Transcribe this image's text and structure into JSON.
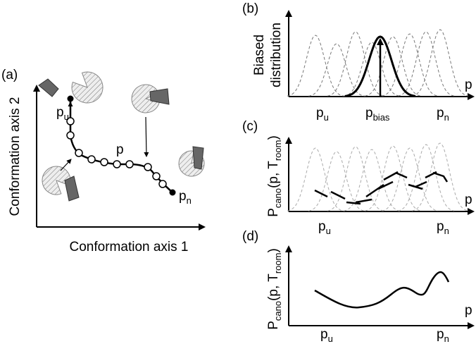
{
  "panels": {
    "a": {
      "label": "(a)",
      "y_axis": "Conformation axis 2",
      "x_axis": "Conformation axis 1",
      "path_label": "p",
      "start": {
        "base": "p",
        "sub": "u"
      },
      "end": {
        "base": "p",
        "sub": "n"
      }
    },
    "b": {
      "label": "(b)",
      "y_axis": [
        "Biased",
        "distribution"
      ],
      "x_axis": "p",
      "ticks": [
        {
          "base": "p",
          "sub": "u"
        },
        {
          "base": "p",
          "sub": "bias"
        },
        {
          "base": "p",
          "sub": "n"
        }
      ]
    },
    "c": {
      "label": "(c)",
      "y_axis": {
        "base": "P",
        "sub": "cano",
        "mid": "(p, T",
        "sub2": "room",
        "end": ")"
      },
      "x_axis": "p",
      "ticks": [
        {
          "base": "p",
          "sub": "u"
        },
        {
          "base": "p",
          "sub": "n"
        }
      ]
    },
    "d": {
      "label": "(d)",
      "y_axis": {
        "base": "P",
        "sub": "cano",
        "mid": "(p, T",
        "sub2": "room",
        "end": ")"
      },
      "x_axis": "p",
      "ticks": [
        {
          "base": "p",
          "sub": "u"
        },
        {
          "base": "p",
          "sub": "n"
        }
      ]
    }
  }
}
